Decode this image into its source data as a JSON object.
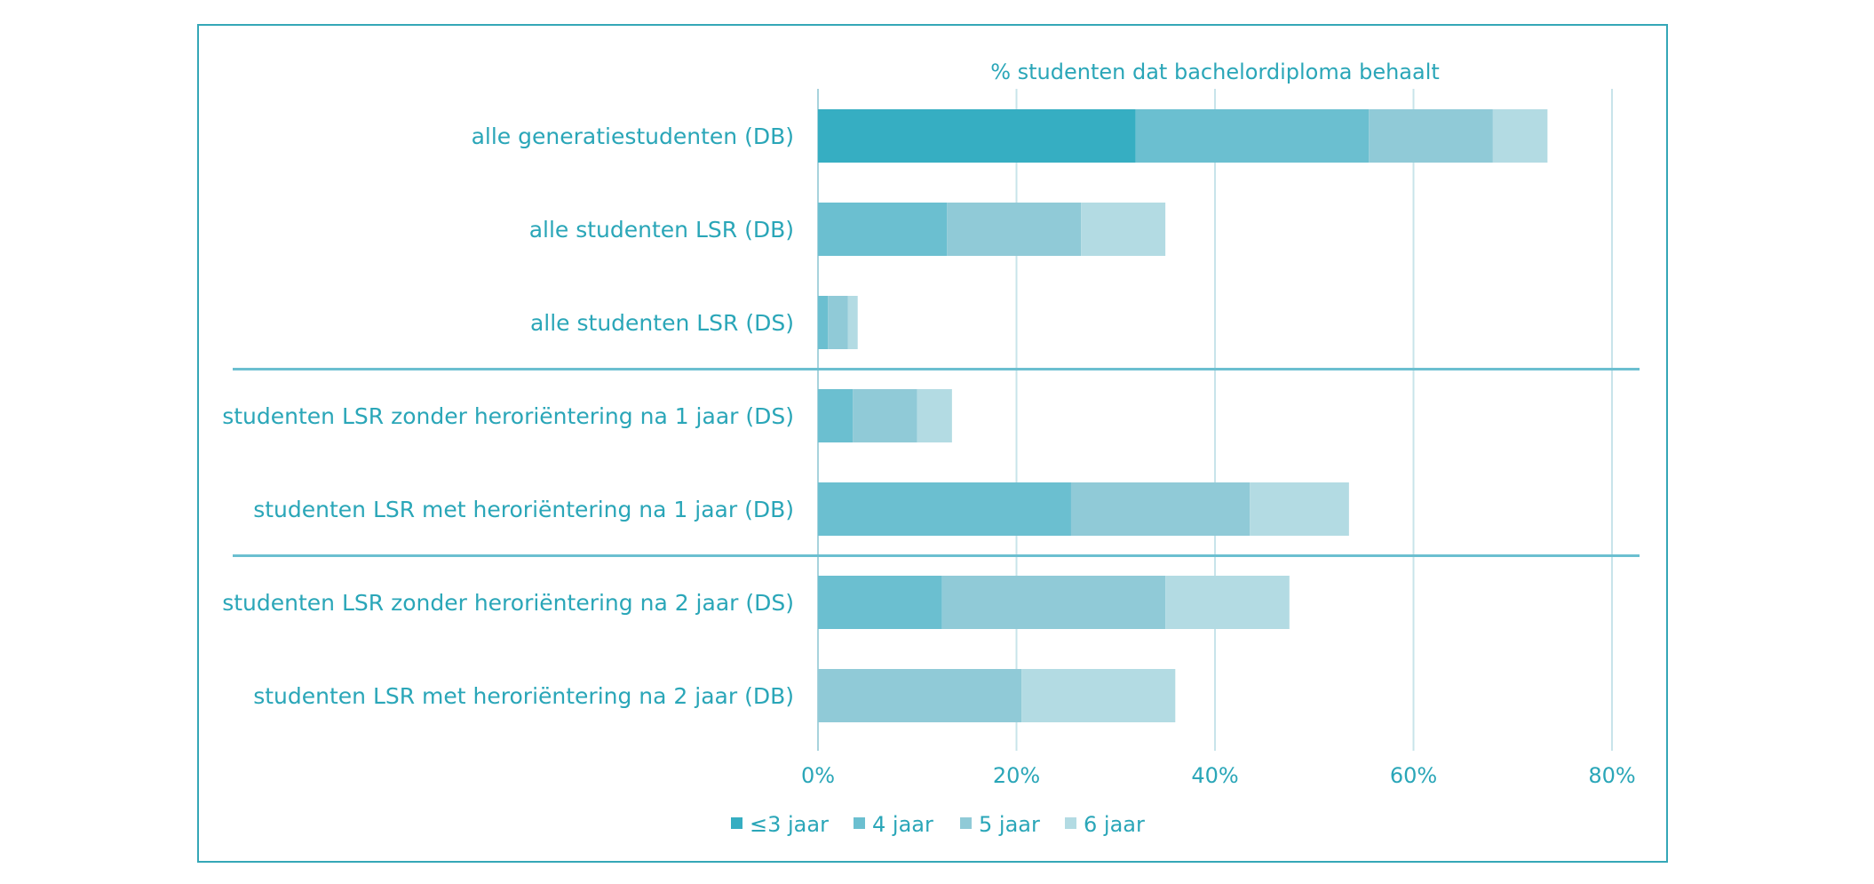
{
  "chart_data": {
    "type": "bar",
    "orientation": "horizontal",
    "stacked": true,
    "title": "% studenten dat bachelordiploma  behaalt",
    "categories": [
      "alle generatiestudenten (DB)",
      "alle studenten LSR (DB)",
      "alle studenten LSR (DS)",
      "studenten LSR zonder heroriëntering na 1 jaar (DS)",
      "studenten LSR met heroriëntering na 1 jaar (DB)",
      "studenten LSR zonder heroriëntering na 2 jaar (DS)",
      "studenten LSR met heroriëntering na 2 jaar (DB)"
    ],
    "series": [
      {
        "name": "≤3 jaar",
        "color": "#36aec2",
        "values": [
          32.0,
          0,
          0,
          0,
          0,
          0,
          0
        ]
      },
      {
        "name": "4 jaar",
        "color": "#6bbfd0",
        "values": [
          23.5,
          13.0,
          1.0,
          3.5,
          25.5,
          12.5,
          0
        ]
      },
      {
        "name": "5 jaar",
        "color": "#90cad7",
        "values": [
          12.5,
          13.5,
          2.0,
          6.5,
          18.0,
          22.5,
          20.5
        ]
      },
      {
        "name": "6 jaar",
        "color": "#b3dbe3",
        "values": [
          5.5,
          8.5,
          1.0,
          3.5,
          10.0,
          12.5,
          15.5
        ]
      }
    ],
    "group_separators_after": [
      2,
      4
    ],
    "xlim": [
      0,
      80
    ],
    "xticks": [
      "0%",
      "20%",
      "40%",
      "60%",
      "80%"
    ],
    "xtick_values": [
      0,
      20,
      40,
      60,
      80
    ],
    "grid": true,
    "legend_position": "bottom"
  }
}
